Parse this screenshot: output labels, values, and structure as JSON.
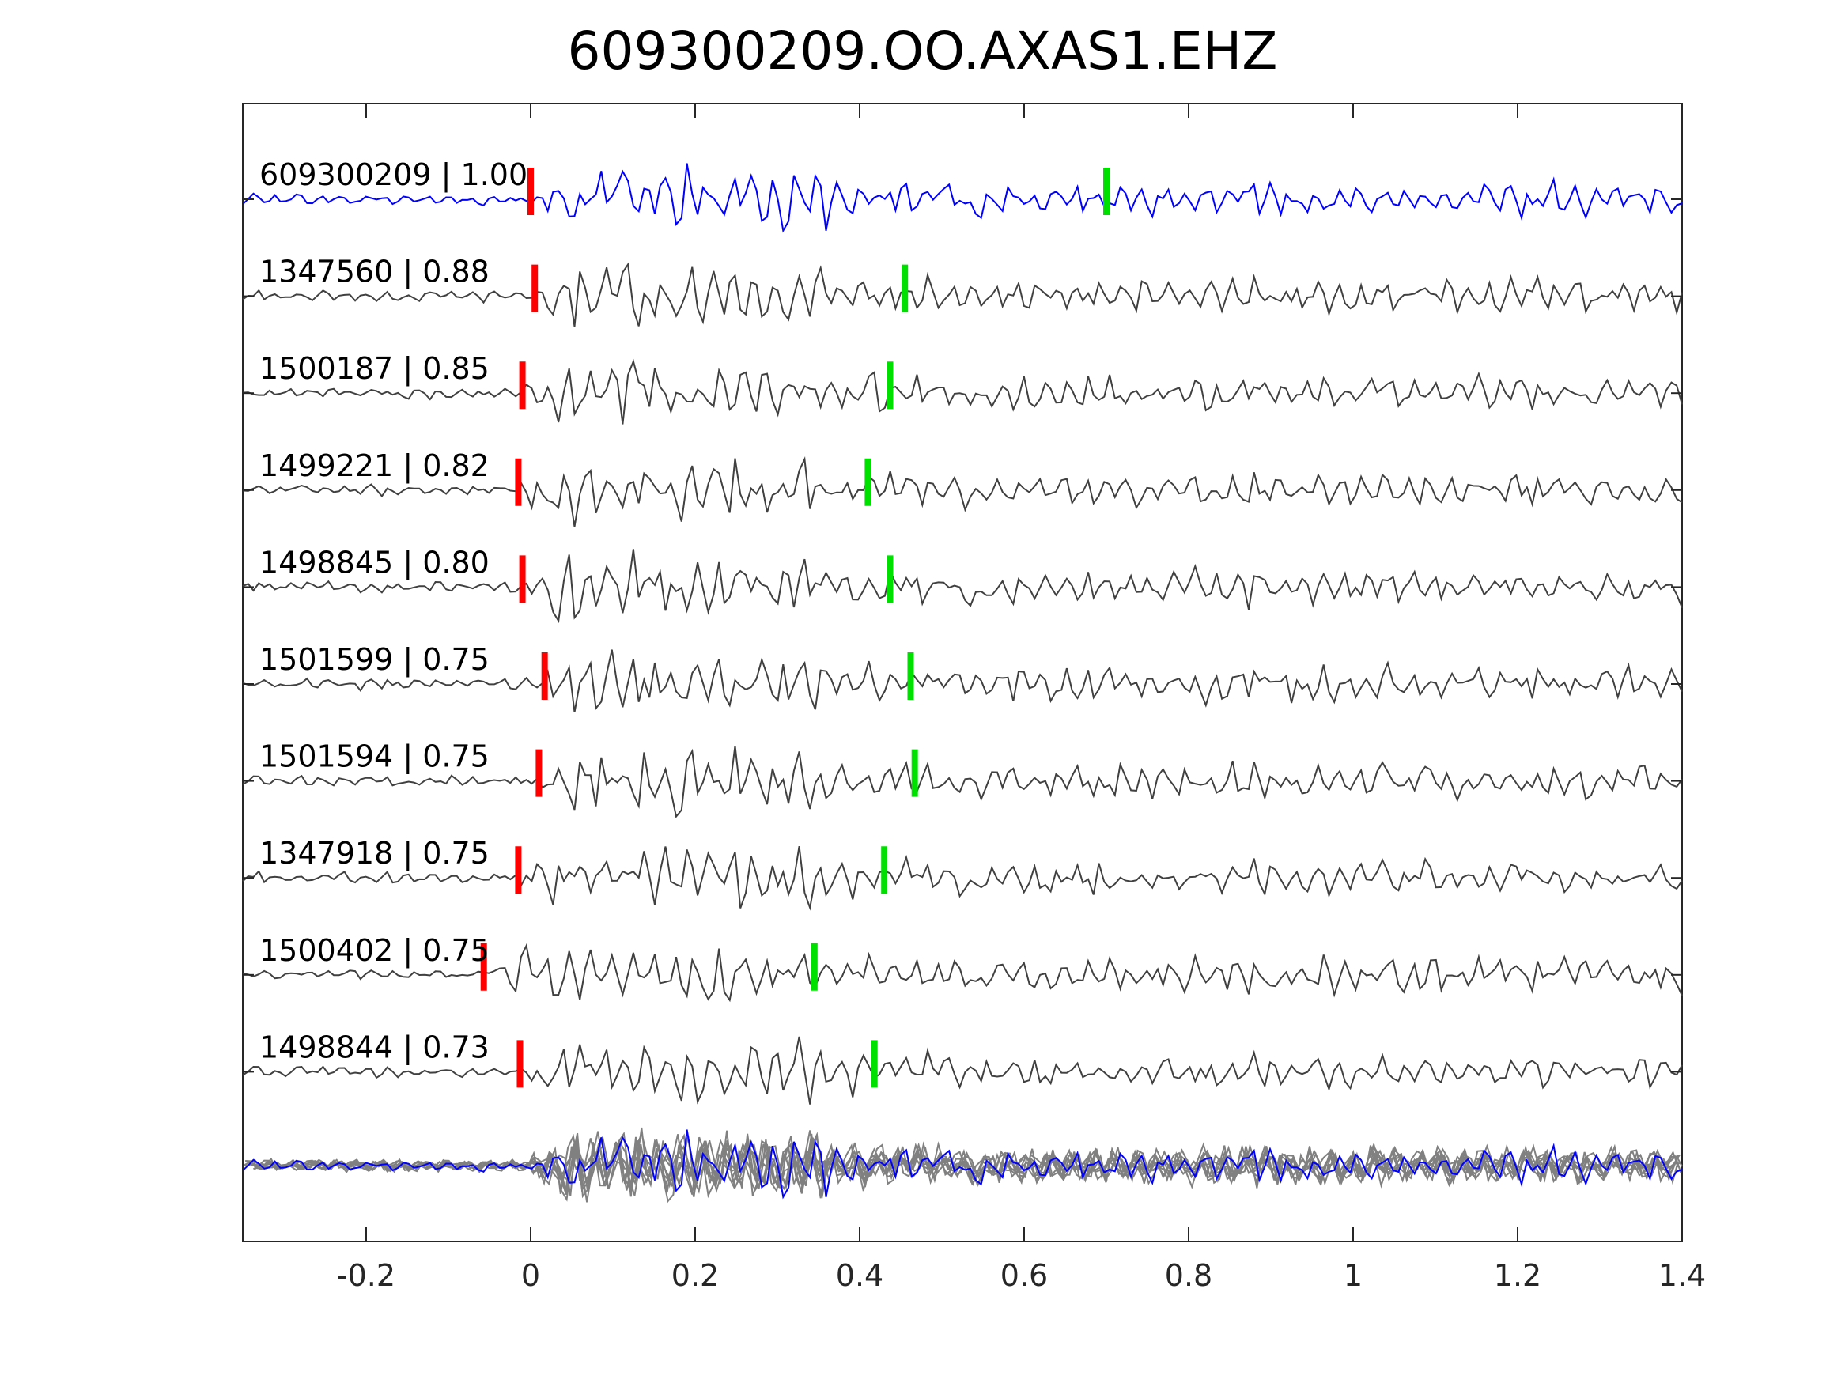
{
  "chart_data": {
    "type": "line",
    "title": "609300209.OO.AXAS1.EHZ",
    "xlabel": "",
    "ylabel": "",
    "xlim": [
      -0.35,
      1.4
    ],
    "x_ticks": [
      "-0.2",
      "0",
      "0.2",
      "0.4",
      "0.6",
      "0.8",
      "1",
      "1.2",
      "1.4"
    ],
    "x_tick_values": [
      -0.2,
      0,
      0.2,
      0.4,
      0.6,
      0.8,
      1,
      1.2,
      1.4
    ],
    "grid": false,
    "colors": {
      "template": "#0000ff",
      "trace": "#404040",
      "overlay": "#808080",
      "p_pick": "#ff0000",
      "s_pick": "#00e000",
      "axes": "#262626"
    },
    "series": [
      {
        "name": "609300209 | 1.00",
        "p_pick": 0.0,
        "s_pick": 0.7
      },
      {
        "name": "1347560 | 0.88",
        "p_pick": 0.005,
        "s_pick": 0.455
      },
      {
        "name": "1500187 | 0.85",
        "p_pick": -0.01,
        "s_pick": 0.437
      },
      {
        "name": "1499221 | 0.82",
        "p_pick": -0.015,
        "s_pick": 0.41
      },
      {
        "name": "1498845 | 0.80",
        "p_pick": -0.01,
        "s_pick": 0.437
      },
      {
        "name": "1501599 | 0.75",
        "p_pick": 0.017,
        "s_pick": 0.462
      },
      {
        "name": "1501594 | 0.75",
        "p_pick": 0.01,
        "s_pick": 0.467
      },
      {
        "name": "1347918 | 0.75",
        "p_pick": -0.015,
        "s_pick": 0.43
      },
      {
        "name": "1500402 | 0.75",
        "p_pick": -0.057,
        "s_pick": 0.345
      },
      {
        "name": "1498844 | 0.73",
        "p_pick": -0.013,
        "s_pick": 0.418
      }
    ]
  }
}
